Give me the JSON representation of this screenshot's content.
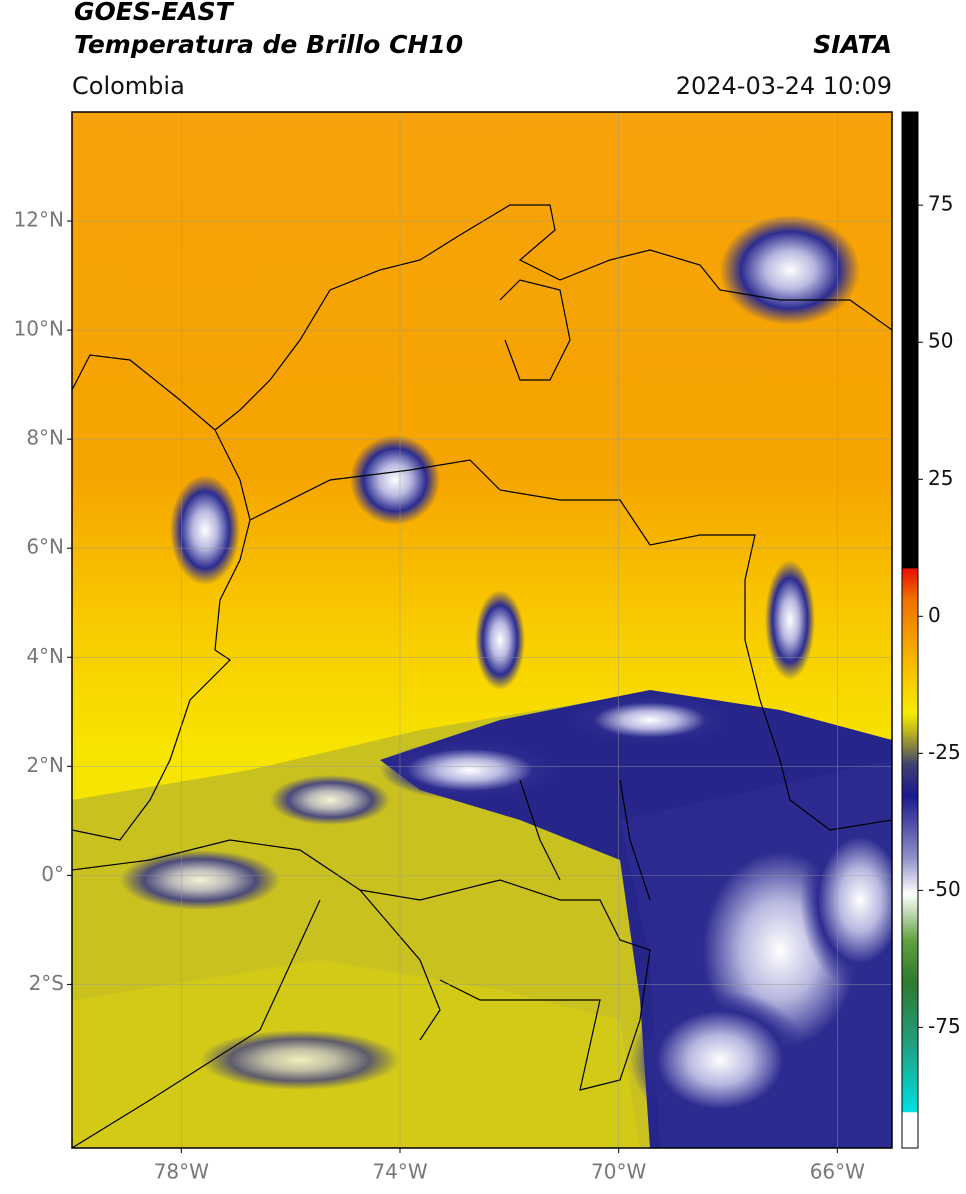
{
  "header": {
    "title": "GOES-EAST",
    "subtitle": "Temperatura de Brillo CH10",
    "source": "SIATA",
    "region": "Colombia",
    "timestamp": "2024-03-24 10:09"
  },
  "map": {
    "xlim": [
      -80,
      -65
    ],
    "ylim": [
      -5,
      14
    ],
    "xticks": [
      {
        "value": -78,
        "label": "78°W"
      },
      {
        "value": -74,
        "label": "74°W"
      },
      {
        "value": -70,
        "label": "70°W"
      },
      {
        "value": -66,
        "label": "66°W"
      }
    ],
    "yticks": [
      {
        "value": 12,
        "label": "12°N"
      },
      {
        "value": 10,
        "label": "10°N"
      },
      {
        "value": 8,
        "label": "8°N"
      },
      {
        "value": 6,
        "label": "6°N"
      },
      {
        "value": 4,
        "label": "4°N"
      },
      {
        "value": 2,
        "label": "2°N"
      },
      {
        "value": 0,
        "label": "0°"
      },
      {
        "value": -2,
        "label": "2°S"
      }
    ]
  },
  "colorbar": {
    "lim": [
      -97,
      92
    ],
    "ticks": [
      75,
      50,
      25,
      0,
      -25,
      -50,
      -75
    ]
  }
}
